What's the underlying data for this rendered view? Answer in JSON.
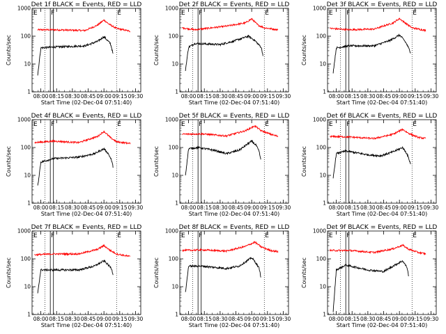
{
  "figure": {
    "x_tick_labels": [
      "08:00",
      "08:15",
      "08:30",
      "08:45",
      "09:00",
      "09:15",
      "09:30"
    ],
    "y_tick_labels": [
      "1",
      "10",
      "100",
      "1000"
    ],
    "colors": {
      "events": "#000000",
      "lld": "#ff0000",
      "axes": "#000000",
      "background": "#ffffff"
    }
  },
  "chart_data": [
    {
      "type": "line",
      "title": "Det 1f BLACK = Events, RED = LLD",
      "xlabel": "Start Time (02-Dec-04 07:51:40)",
      "ylabel": "Counts/sec",
      "yscale": "log",
      "ylim": [
        1,
        1000
      ],
      "xlim": [
        "07:51:40",
        "09:35"
      ],
      "dotted_markers": [
        "08:04",
        "09:12"
      ],
      "solid_markers": [
        "08:09",
        "08:12"
      ],
      "marker_labels": [
        "E",
        "F",
        "E"
      ],
      "series": [
        {
          "name": "BLACK = Events",
          "events": [
            [
              7.95,
              4
            ],
            [
              8.0,
              38
            ],
            [
              8.15,
              40
            ],
            [
              8.7,
              45
            ],
            [
              8.9,
              65
            ],
            [
              9.0,
              95
            ],
            [
              9.07,
              65
            ],
            [
              9.1,
              55
            ],
            [
              9.12,
              40
            ],
            [
              9.15,
              20
            ]
          ]
        },
        {
          "name": "RED = LLD",
          "lld": [
            [
              7.95,
              170
            ],
            [
              8.2,
              170
            ],
            [
              8.7,
              160
            ],
            [
              8.9,
              250
            ],
            [
              9.0,
              380
            ],
            [
              9.08,
              270
            ],
            [
              9.2,
              190
            ],
            [
              9.42,
              150
            ]
          ]
        }
      ]
    },
    {
      "type": "line",
      "title": "Det 2f BLACK = Events, RED = LLD",
      "xlabel": "Start Time (02-Dec-04 07:51:40)",
      "ylabel": "Counts/sec",
      "yscale": "log",
      "ylim": [
        1,
        1000
      ],
      "xlim": [
        "07:51:40",
        "09:35"
      ],
      "dotted_markers": [
        "08:04",
        "09:12"
      ],
      "solid_markers": [
        "08:09",
        "08:12"
      ],
      "marker_labels": [
        "E",
        "F",
        "E"
      ],
      "series": [
        {
          "name": "BLACK = Events",
          "events": [
            [
              7.95,
              6
            ],
            [
              8.0,
              40
            ],
            [
              8.1,
              55
            ],
            [
              8.5,
              50
            ],
            [
              8.7,
              65
            ],
            [
              8.95,
              100
            ],
            [
              9.05,
              70
            ],
            [
              9.15,
              40
            ],
            [
              9.18,
              20
            ]
          ]
        },
        {
          "name": "RED = LLD",
          "lld": [
            [
              7.9,
              200
            ],
            [
              8.1,
              170
            ],
            [
              8.6,
              230
            ],
            [
              8.9,
              300
            ],
            [
              9.0,
              420
            ],
            [
              9.1,
              250
            ],
            [
              9.2,
              200
            ],
            [
              9.42,
              170
            ]
          ]
        }
      ]
    },
    {
      "type": "line",
      "title": "Det 3f BLACK = Events, RED = LLD",
      "xlabel": "Start Time (02-Dec-04 07:51:40)",
      "ylabel": "Counts/sec",
      "yscale": "log",
      "ylim": [
        1,
        1000
      ],
      "xlim": [
        "07:51:40",
        "09:35"
      ],
      "dotted_markers": [
        "08:04",
        "09:12"
      ],
      "solid_markers": [
        "08:09",
        "08:12"
      ],
      "marker_labels": [
        "E",
        "F",
        "E"
      ],
      "series": [
        {
          "name": "BLACK = Events",
          "events": [
            [
              7.95,
              5
            ],
            [
              8.0,
              38
            ],
            [
              8.2,
              45
            ],
            [
              8.6,
              45
            ],
            [
              8.85,
              70
            ],
            [
              9.0,
              110
            ],
            [
              9.07,
              75
            ],
            [
              9.12,
              50
            ],
            [
              9.18,
              25
            ]
          ]
        },
        {
          "name": "RED = LLD",
          "lld": [
            [
              7.9,
              190
            ],
            [
              8.2,
              170
            ],
            [
              8.6,
              180
            ],
            [
              8.9,
              300
            ],
            [
              9.0,
              430
            ],
            [
              9.1,
              290
            ],
            [
              9.2,
              200
            ],
            [
              9.42,
              160
            ]
          ]
        }
      ]
    },
    {
      "type": "line",
      "title": "Det 4f BLACK = Events, RED = LLD",
      "xlabel": "Start Time (02-Dec-04 07:51:40)",
      "ylabel": "Counts/sec",
      "yscale": "log",
      "ylim": [
        1,
        1000
      ],
      "xlim": [
        "07:51:40",
        "09:35"
      ],
      "dotted_markers": [
        "08:04",
        "09:12"
      ],
      "solid_markers": [
        "08:09",
        "08:12"
      ],
      "marker_labels": [
        "E",
        "F",
        "E"
      ],
      "series": [
        {
          "name": "BLACK = Events",
          "events": [
            [
              7.95,
              4
            ],
            [
              8.0,
              30
            ],
            [
              8.2,
              40
            ],
            [
              8.6,
              45
            ],
            [
              8.85,
              60
            ],
            [
              9.0,
              90
            ],
            [
              9.07,
              60
            ],
            [
              9.12,
              35
            ],
            [
              9.15,
              18
            ]
          ]
        },
        {
          "name": "RED = LLD",
          "lld": [
            [
              7.9,
              150
            ],
            [
              8.2,
              170
            ],
            [
              8.6,
              150
            ],
            [
              8.9,
              250
            ],
            [
              9.0,
              380
            ],
            [
              9.1,
              230
            ],
            [
              9.2,
              160
            ],
            [
              9.42,
              140
            ]
          ]
        }
      ]
    },
    {
      "type": "line",
      "title": "Det 5f BLACK = Events, RED = LLD",
      "xlabel": "Start Time (02-Dec-04 07:51:40)",
      "ylabel": "Counts/sec",
      "yscale": "log",
      "ylim": [
        1,
        1000
      ],
      "xlim": [
        "07:51:40",
        "09:35"
      ],
      "dotted_markers": [
        "08:04",
        "09:12"
      ],
      "solid_markers": [
        "08:09",
        "08:12"
      ],
      "marker_labels": [
        "E",
        "F",
        "E"
      ],
      "series": [
        {
          "name": "BLACK = Events",
          "events": [
            [
              7.95,
              10
            ],
            [
              8.0,
              90
            ],
            [
              8.15,
              100
            ],
            [
              8.4,
              80
            ],
            [
              8.6,
              60
            ],
            [
              8.8,
              80
            ],
            [
              9.0,
              170
            ],
            [
              9.07,
              120
            ],
            [
              9.12,
              70
            ],
            [
              9.15,
              30
            ]
          ]
        },
        {
          "name": "RED = LLD",
          "lld": [
            [
              7.9,
              300
            ],
            [
              8.2,
              310
            ],
            [
              8.6,
              260
            ],
            [
              8.9,
              400
            ],
            [
              9.05,
              600
            ],
            [
              9.15,
              400
            ],
            [
              9.3,
              300
            ],
            [
              9.42,
              250
            ]
          ]
        }
      ]
    },
    {
      "type": "line",
      "title": "Det 6f BLACK = Events, RED = LLD",
      "xlabel": "Start Time (02-Dec-04 07:51:40)",
      "ylabel": "Counts/sec",
      "yscale": "log",
      "ylim": [
        1,
        1000
      ],
      "xlim": [
        "07:51:40",
        "09:35"
      ],
      "dotted_markers": [
        "08:04",
        "09:12"
      ],
      "solid_markers": [
        "08:09",
        "08:12"
      ],
      "marker_labels": [
        "E",
        "F",
        "E"
      ],
      "series": [
        {
          "name": "BLACK = Events",
          "events": [
            [
              7.95,
              8
            ],
            [
              8.0,
              60
            ],
            [
              8.15,
              75
            ],
            [
              8.5,
              55
            ],
            [
              8.7,
              50
            ],
            [
              8.9,
              70
            ],
            [
              9.05,
              100
            ],
            [
              9.12,
              60
            ],
            [
              9.18,
              25
            ]
          ]
        },
        {
          "name": "RED = LLD",
          "lld": [
            [
              7.9,
              250
            ],
            [
              8.2,
              240
            ],
            [
              8.6,
              210
            ],
            [
              8.9,
              300
            ],
            [
              9.05,
              450
            ],
            [
              9.15,
              320
            ],
            [
              9.3,
              230
            ],
            [
              9.42,
              210
            ]
          ]
        }
      ]
    },
    {
      "type": "line",
      "title": "Det 7f BLACK = Events, RED = LLD",
      "xlabel": "Start Time (02-Dec-04 07:51:40)",
      "ylabel": "Counts/sec",
      "yscale": "log",
      "ylim": [
        1,
        1000
      ],
      "xlim": [
        "07:51:40",
        "09:35"
      ],
      "dotted_markers": [
        "08:04",
        "09:12"
      ],
      "solid_markers": [
        "08:09",
        "08:12"
      ],
      "marker_labels": [
        "E",
        "F",
        "E"
      ],
      "series": [
        {
          "name": "BLACK = Events",
          "events": [
            [
              7.95,
              6
            ],
            [
              8.0,
              40
            ],
            [
              8.2,
              40
            ],
            [
              8.6,
              40
            ],
            [
              8.85,
              55
            ],
            [
              9.0,
              85
            ],
            [
              9.07,
              60
            ],
            [
              9.12,
              45
            ],
            [
              9.15,
              25
            ]
          ]
        },
        {
          "name": "RED = LLD",
          "lld": [
            [
              7.9,
              140
            ],
            [
              8.2,
              150
            ],
            [
              8.6,
              150
            ],
            [
              8.9,
              220
            ],
            [
              9.0,
              300
            ],
            [
              9.1,
              200
            ],
            [
              9.2,
              150
            ],
            [
              9.42,
              120
            ]
          ]
        }
      ]
    },
    {
      "type": "line",
      "title": "Det 8f BLACK = Events, RED = LLD",
      "xlabel": "Start Time (02-Dec-04 07:51:40)",
      "ylabel": "Counts/sec",
      "yscale": "log",
      "ylim": [
        1,
        1000
      ],
      "xlim": [
        "07:51:40",
        "09:35"
      ],
      "dotted_markers": [
        "08:04",
        "09:12"
      ],
      "solid_markers": [
        "08:09",
        "08:12"
      ],
      "marker_labels": [
        "E",
        "F",
        "E"
      ],
      "series": [
        {
          "name": "BLACK = Events",
          "events": [
            [
              7.95,
              6
            ],
            [
              8.0,
              55
            ],
            [
              8.2,
              55
            ],
            [
              8.6,
              45
            ],
            [
              8.8,
              55
            ],
            [
              9.0,
              110
            ],
            [
              9.07,
              70
            ],
            [
              9.12,
              45
            ],
            [
              9.15,
              20
            ]
          ]
        },
        {
          "name": "RED = LLD",
          "lld": [
            [
              7.9,
              200
            ],
            [
              8.2,
              210
            ],
            [
              8.6,
              190
            ],
            [
              8.9,
              280
            ],
            [
              9.05,
              400
            ],
            [
              9.15,
              270
            ],
            [
              9.3,
              200
            ],
            [
              9.42,
              180
            ]
          ]
        }
      ]
    },
    {
      "type": "line",
      "title": "Det 9f BLACK = Events, RED = LLD",
      "xlabel": "Start Time (02-Dec-04 07:51:40)",
      "ylabel": "Counts/sec",
      "yscale": "log",
      "ylim": [
        1,
        1000
      ],
      "xlim": [
        "07:51:40",
        "09:35"
      ],
      "dotted_markers": [
        "08:04",
        "09:12"
      ],
      "solid_markers": [
        "08:09",
        "08:12"
      ],
      "marker_labels": [
        "E",
        "F",
        "E"
      ],
      "series": [
        {
          "name": "BLACK = Events",
          "events": [
            [
              7.95,
              1.3
            ],
            [
              8.0,
              40
            ],
            [
              8.15,
              60
            ],
            [
              8.5,
              40
            ],
            [
              8.75,
              35
            ],
            [
              8.9,
              55
            ],
            [
              9.05,
              85
            ],
            [
              9.12,
              50
            ],
            [
              9.15,
              22
            ]
          ]
        },
        {
          "name": "RED = LLD",
          "lld": [
            [
              7.9,
              200
            ],
            [
              8.2,
              200
            ],
            [
              8.6,
              170
            ],
            [
              8.9,
              230
            ],
            [
              9.05,
              310
            ],
            [
              9.15,
              220
            ],
            [
              9.3,
              170
            ],
            [
              9.42,
              150
            ]
          ]
        }
      ]
    }
  ]
}
